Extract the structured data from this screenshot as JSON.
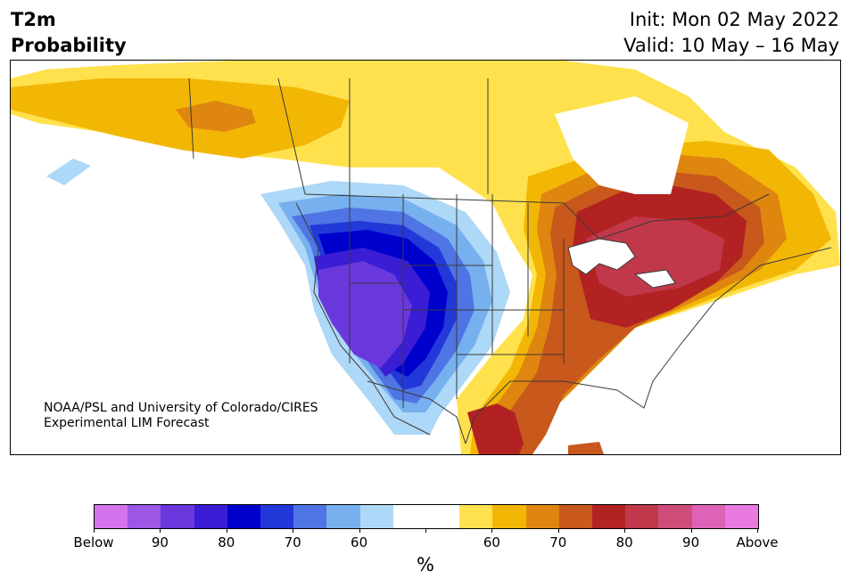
{
  "header": {
    "title_line1": "T2m",
    "title_line2": "Probability",
    "init": "Init: Mon 02 May 2022",
    "valid": "Valid: 10 May – 16 May"
  },
  "map": {
    "credit_line1": "NOAA/PSL and University of Colorado/CIRES",
    "credit_line2": "Experimental LIM Forecast",
    "colors": {
      "above_60": "#ffe14d",
      "above_65": "#f2b705",
      "above_70": "#de8610",
      "above_75": "#c8581b",
      "above_80": "#b22222",
      "above_85": "#c0384a",
      "below_60": "#add8f7",
      "below_65": "#77b0ee",
      "below_70": "#4f74e3",
      "below_75": "#2238d8",
      "below_80": "#0000cc",
      "below_85": "#3a1dd4",
      "below_90": "#6a38dc",
      "border": "#3a3a3a",
      "lake": "#ffffff"
    }
  },
  "colorbar": {
    "colors": [
      "#d473ec",
      "#9c57e6",
      "#6a38dc",
      "#3a1dd4",
      "#0000cc",
      "#2238d8",
      "#4f74e3",
      "#77b0ee",
      "#add8f7",
      "#ffffff",
      "#ffffff",
      "#ffe14d",
      "#f2b705",
      "#de8610",
      "#c8581b",
      "#b22222",
      "#c0384a",
      "#cf4d7a",
      "#de62b6",
      "#e87ae0"
    ],
    "labels": [
      "Below",
      "90",
      "80",
      "70",
      "60",
      "",
      "60",
      "70",
      "80",
      "90",
      "Above"
    ],
    "unit": "%"
  }
}
